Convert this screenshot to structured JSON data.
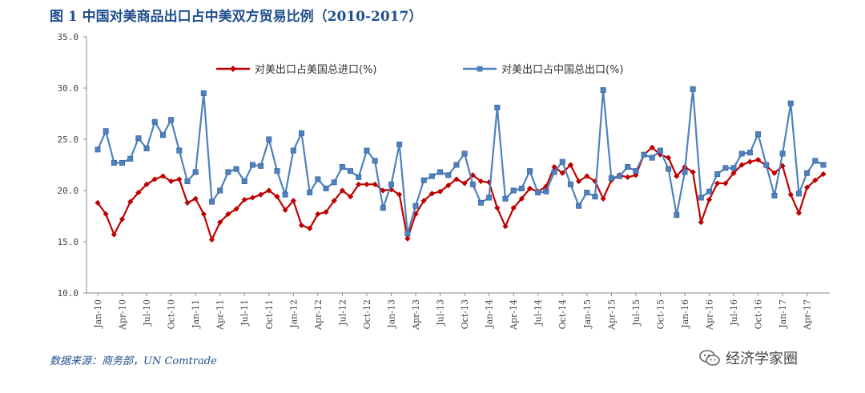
{
  "title": "图 1  中国对美商品出口占中美双方贸易比例（2010-2017）",
  "source": "数据来源：商务部，UN Comtrade",
  "watermark": {
    "text": "经济学家圈",
    "icon": "wechat-icon"
  },
  "chart_data": {
    "type": "line",
    "ylim": [
      10,
      35
    ],
    "yticks": [
      "10.0",
      "15.0",
      "20.0",
      "25.0",
      "30.0",
      "35.0"
    ],
    "grid": false,
    "legend_position": "top",
    "x": [
      "Jan-10",
      "Feb-10",
      "Mar-10",
      "Apr-10",
      "May-10",
      "Jun-10",
      "Jul-10",
      "Aug-10",
      "Sep-10",
      "Oct-10",
      "Nov-10",
      "Dec-10",
      "Jan-11",
      "Feb-11",
      "Mar-11",
      "Apr-11",
      "May-11",
      "Jun-11",
      "Jul-11",
      "Aug-11",
      "Sep-11",
      "Oct-11",
      "Nov-11",
      "Dec-11",
      "Jan-12",
      "Feb-12",
      "Mar-12",
      "Apr-12",
      "May-12",
      "Jun-12",
      "Jul-12",
      "Aug-12",
      "Sep-12",
      "Oct-12",
      "Nov-12",
      "Dec-12",
      "Jan-13",
      "Feb-13",
      "Mar-13",
      "Apr-13",
      "May-13",
      "Jun-13",
      "Jul-13",
      "Aug-13",
      "Sep-13",
      "Oct-13",
      "Nov-13",
      "Dec-13",
      "Jan-14",
      "Feb-14",
      "Mar-14",
      "Apr-14",
      "May-14",
      "Jun-14",
      "Jul-14",
      "Aug-14",
      "Sep-14",
      "Oct-14",
      "Nov-14",
      "Dec-14",
      "Jan-15",
      "Feb-15",
      "Mar-15",
      "Apr-15",
      "May-15",
      "Jun-15",
      "Jul-15",
      "Aug-15",
      "Sep-15",
      "Oct-15",
      "Nov-15",
      "Dec-15",
      "Jan-16",
      "Feb-16",
      "Mar-16",
      "Apr-16",
      "May-16",
      "Jun-16",
      "Jul-16",
      "Aug-16",
      "Sep-16",
      "Oct-16",
      "Nov-16",
      "Dec-16",
      "Jan-17",
      "Feb-17",
      "Mar-17",
      "Apr-17",
      "May-17",
      "Jun-17"
    ],
    "x_tick_labels": [
      "Jan-10",
      "Apr-10",
      "Jul-10",
      "Oct-10",
      "Jan-11",
      "Apr-11",
      "Jul-11",
      "Oct-11",
      "Jan-12",
      "Apr-12",
      "Jul-12",
      "Oct-12",
      "Jan-13",
      "Apr-13",
      "Jul-13",
      "Oct-13",
      "Jan-14",
      "Apr-14",
      "Jul-14",
      "Oct-14",
      "Jan-15",
      "Apr-15",
      "Jul-15",
      "Oct-15",
      "Jan-16",
      "Apr-16",
      "Jul-16",
      "Oct-16",
      "Jan-17",
      "Apr-17"
    ],
    "series": [
      {
        "name": "对美出口占美国总进口(%)",
        "color": "#c00000",
        "marker": "diamond",
        "values": [
          18.8,
          17.7,
          15.7,
          17.2,
          18.9,
          19.8,
          20.6,
          21.1,
          21.4,
          20.9,
          21.1,
          18.8,
          19.2,
          17.7,
          15.2,
          16.9,
          17.7,
          18.2,
          19.1,
          19.3,
          19.6,
          20.0,
          19.4,
          18.1,
          19.0,
          16.6,
          16.3,
          17.7,
          17.9,
          19.0,
          20.0,
          19.4,
          20.6,
          20.6,
          20.6,
          20.0,
          20.1,
          19.6,
          15.3,
          17.7,
          19.0,
          19.7,
          19.9,
          20.5,
          21.1,
          20.7,
          21.5,
          20.9,
          20.8,
          18.3,
          16.5,
          18.3,
          19.2,
          20.2,
          19.9,
          20.4,
          22.3,
          21.7,
          22.5,
          20.9,
          21.4,
          20.9,
          19.2,
          21.0,
          21.5,
          21.3,
          21.5,
          23.5,
          24.2,
          23.5,
          23.2,
          21.4,
          22.3,
          21.8,
          16.9,
          19.1,
          20.7,
          20.7,
          21.7,
          22.5,
          22.8,
          23.0,
          22.4,
          21.7,
          22.4,
          19.6,
          17.8,
          20.3,
          21.0,
          21.6
        ]
      },
      {
        "name": "对美出口占中国总出口(%)",
        "color": "#4f81bd",
        "marker": "square",
        "values": [
          24.0,
          25.8,
          22.7,
          22.7,
          23.1,
          25.1,
          24.1,
          26.7,
          25.4,
          26.9,
          23.9,
          20.9,
          21.8,
          29.5,
          18.9,
          20.0,
          21.8,
          22.1,
          20.9,
          22.5,
          22.4,
          25.0,
          21.9,
          19.6,
          23.9,
          25.6,
          19.8,
          21.1,
          20.2,
          20.8,
          22.3,
          21.9,
          21.3,
          23.9,
          22.9,
          18.3,
          20.6,
          24.5,
          15.8,
          18.5,
          21.0,
          21.4,
          21.8,
          21.5,
          22.5,
          23.6,
          20.6,
          18.8,
          19.3,
          28.1,
          19.2,
          20.0,
          20.2,
          21.9,
          19.8,
          19.9,
          21.8,
          22.8,
          20.6,
          18.5,
          19.8,
          19.4,
          29.8,
          21.2,
          21.4,
          22.3,
          21.9,
          23.5,
          23.2,
          23.9,
          22.1,
          17.6,
          21.8,
          29.9,
          19.3,
          19.9,
          21.6,
          22.2,
          22.2,
          23.6,
          23.7,
          25.5,
          22.5,
          19.5,
          23.6,
          28.5,
          19.7,
          21.7,
          22.9,
          22.5
        ]
      }
    ]
  }
}
